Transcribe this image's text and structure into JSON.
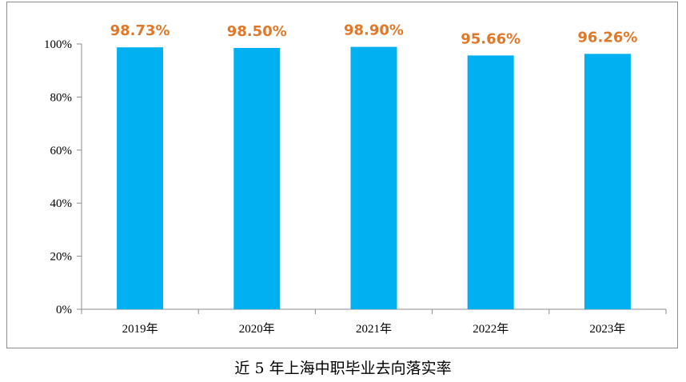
{
  "caption": "近 5 年上海中职毕业去向落实率",
  "chart_data": {
    "type": "bar",
    "categories": [
      "2019年",
      "2020年",
      "2021年",
      "2022年",
      "2023年"
    ],
    "values": [
      98.73,
      98.5,
      98.9,
      95.66,
      96.26
    ],
    "data_labels": [
      "98.73%",
      "98.50%",
      "98.90%",
      "95.66%",
      "96.26%"
    ],
    "y_ticks": [
      "0%",
      "20%",
      "40%",
      "60%",
      "80%",
      "100%"
    ],
    "ylim": [
      0,
      100
    ],
    "grid": false,
    "legend": "none",
    "bar_color": "#00b0f0",
    "label_color": "#e0782a",
    "axis_color": "#8c8c8c"
  }
}
